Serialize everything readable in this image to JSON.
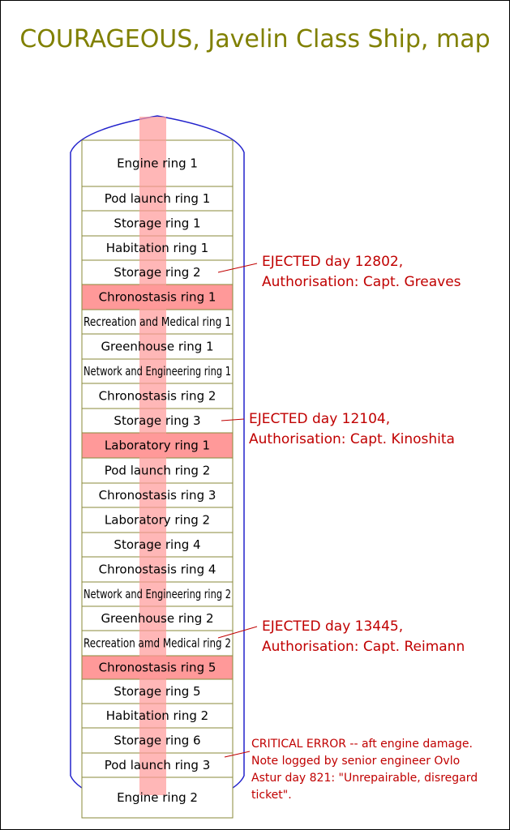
{
  "title": "COURAGEOUS, Javelin Class Ship, map",
  "colors": {
    "title": "#808000",
    "hull": "#2222cc",
    "ring_border": "#8a8a3a",
    "ejected_fill": "#ff9999",
    "center_stripe": "#ff9999",
    "note_text": "#c00000",
    "leader": "#c00000"
  },
  "rings": [
    {
      "label": "Engine ring 1",
      "ejected": false
    },
    {
      "label": "Pod launch ring 1",
      "ejected": false
    },
    {
      "label": "Storage ring 1",
      "ejected": false
    },
    {
      "label": "Habitation ring 1",
      "ejected": false
    },
    {
      "label": "Storage ring 2",
      "ejected": false
    },
    {
      "label": "Chronostasis ring 1",
      "ejected": true
    },
    {
      "label": "Recreation and Medical ring 1",
      "ejected": false
    },
    {
      "label": "Greenhouse ring 1",
      "ejected": false
    },
    {
      "label": "Network and Engineering ring 1",
      "ejected": false
    },
    {
      "label": "Chronostasis ring 2",
      "ejected": false
    },
    {
      "label": "Storage ring 3",
      "ejected": false
    },
    {
      "label": "Laboratory ring 1",
      "ejected": true
    },
    {
      "label": "Pod launch ring 2",
      "ejected": false
    },
    {
      "label": "Chronostasis ring 3",
      "ejected": false
    },
    {
      "label": "Laboratory ring 2",
      "ejected": false
    },
    {
      "label": "Storage ring 4",
      "ejected": false
    },
    {
      "label": "Chronostasis ring 4",
      "ejected": false
    },
    {
      "label": "Network and Engineering ring 2",
      "ejected": false
    },
    {
      "label": "Greenhouse ring 2",
      "ejected": false
    },
    {
      "label": "Recreation amd Medical ring 2",
      "ejected": false
    },
    {
      "label": "Chronostasis ring 5",
      "ejected": true
    },
    {
      "label": "Storage ring 5",
      "ejected": false
    },
    {
      "label": "Habitation ring 2",
      "ejected": false
    },
    {
      "label": "Storage ring 6",
      "ejected": false
    },
    {
      "label": "Pod launch ring 3",
      "ejected": false
    },
    {
      "label": "Engine ring 2",
      "ejected": false
    }
  ],
  "notes": [
    {
      "lines": [
        "EJECTED day 12802,",
        "Authorisation: Capt. Greaves"
      ]
    },
    {
      "lines": [
        "EJECTED day 12104,",
        "Authorisation: Capt. Kinoshita"
      ]
    },
    {
      "lines": [
        "EJECTED day 13445,",
        "Authorisation: Capt. Reimann"
      ]
    },
    {
      "lines": [
        "CRITICAL ERROR -- aft engine damage.",
        "Note logged by senior engineer Ovlo",
        "Astur day 821: \"Unrepairable, disregard",
        "ticket\"."
      ]
    }
  ]
}
